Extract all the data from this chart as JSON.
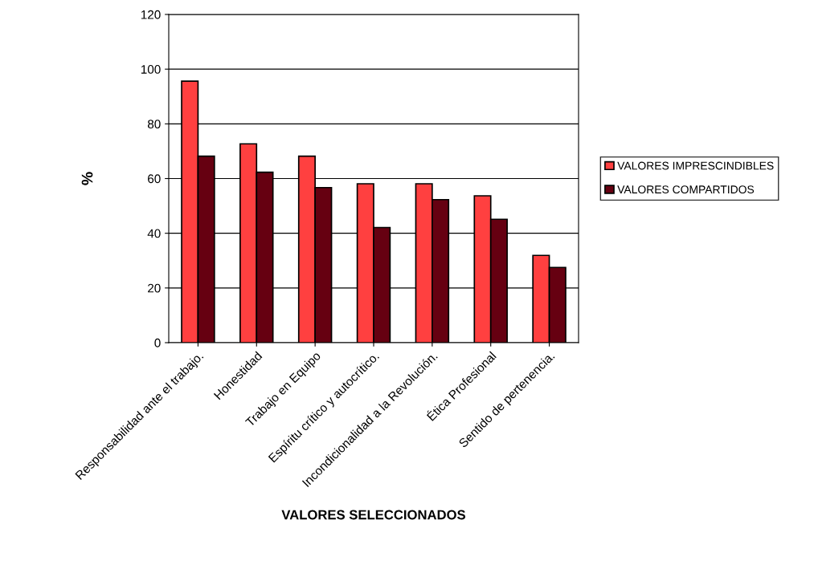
{
  "chart_data": {
    "type": "bar",
    "xlabel": "VALORES SELECCIONADOS",
    "ylabel": "%",
    "categories": [
      "Responsabilidad ante el trabajo.",
      "Honestidad",
      "Trabajo en Equipo",
      "Espíritu crítico y autocrítico.",
      "Incondicionalidad a la Revolución.",
      "Ética Profesional",
      "Sentido de pertenencia."
    ],
    "series": [
      {
        "name": "VALORES IMPRESCINDIBLES",
        "color": "#ff4040",
        "values": [
          95.6,
          72.7,
          68.2,
          58.1,
          58.1,
          53.7,
          31.9
        ]
      },
      {
        "name": "VALORES COMPARTIDOS",
        "color": "#660011",
        "values": [
          68.2,
          62.3,
          56.7,
          42.1,
          52.3,
          45.1,
          27.5
        ]
      }
    ],
    "ylim": [
      0,
      120
    ],
    "yticks": [
      0,
      20,
      40,
      60,
      80,
      100,
      120
    ],
    "grid": "y",
    "legend": "right"
  }
}
